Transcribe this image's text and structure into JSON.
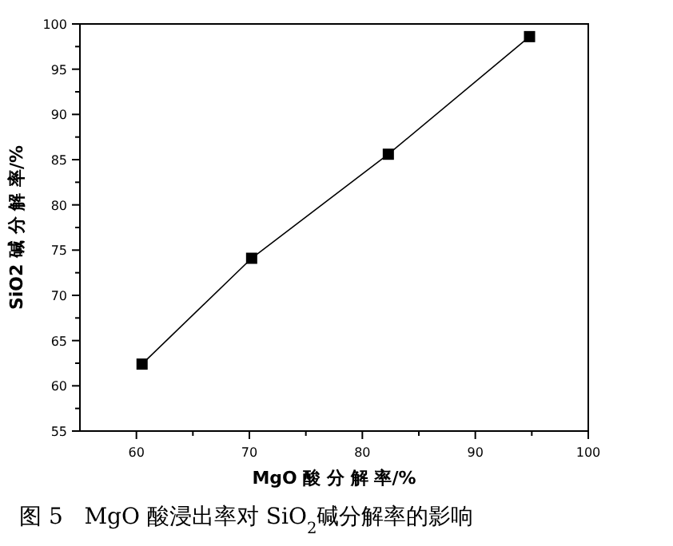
{
  "chart_data": {
    "type": "line",
    "xlabel": "MgO 酸 分 解 率/%",
    "ylabel": "SiO2 碱 分 解 率/%",
    "x": [
      60.5,
      70.2,
      82.3,
      94.8
    ],
    "series": [
      {
        "color": "#000000",
        "values": [
          62.4,
          74.1,
          85.6,
          98.6
        ]
      }
    ],
    "xlim": [
      55,
      100
    ],
    "xticks": [
      60,
      {
        "value": 65,
        "label": null
      },
      70,
      {
        "value": 75,
        "label": null
      },
      80,
      {
        "value": 85,
        "label": null
      },
      90,
      {
        "value": 95,
        "label": null
      },
      100
    ],
    "ylim": [
      55,
      100
    ],
    "yticks": [
      55,
      {
        "value": 57.5,
        "label": null
      },
      60,
      {
        "value": 62.5,
        "label": null
      },
      65,
      {
        "value": 67.5,
        "label": null
      },
      70,
      {
        "value": 72.5,
        "label": null
      },
      75,
      {
        "value": 77.5,
        "label": null
      },
      80,
      {
        "value": 82.5,
        "label": null
      },
      85,
      {
        "value": 87.5,
        "label": null
      },
      90,
      {
        "value": 92.5,
        "label": null
      },
      95,
      {
        "value": 97.5,
        "label": null
      },
      100
    ],
    "marker": "square",
    "line_style": "solid",
    "annotations": [
      "图 5   MgO 酸浸出率对 SiO$_{2}$碱分解率的影响"
    ]
  }
}
